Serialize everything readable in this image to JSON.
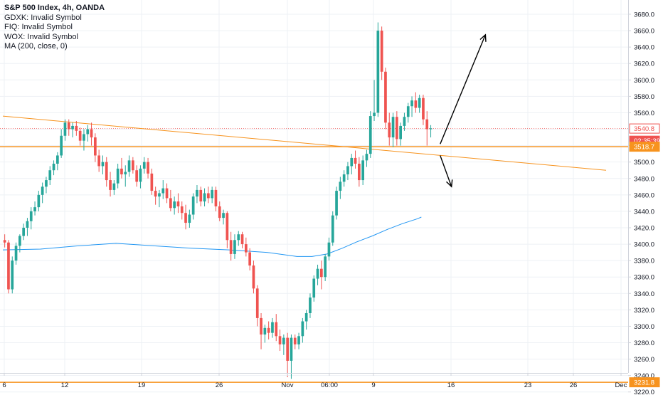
{
  "chart_data": {
    "type": "candlestick",
    "title": "S&P 500 Index, 4h, OANDA",
    "legend": [
      "GDXK: Invalid Symbol",
      "FIQ: Invalid Symbol",
      "WOX: Invalid Symbol",
      "MA (200, close, 0)"
    ],
    "x_tick_labels": [
      "6",
      "12",
      "19",
      "26",
      "Nov",
      "06:00",
      "9",
      "16",
      "23",
      "26",
      "Dec"
    ],
    "y_tick_labels": [
      3220,
      3240,
      3260,
      3280,
      3300,
      3320,
      3340,
      3360,
      3380,
      3400,
      3420,
      3440,
      3460,
      3480,
      3500,
      3520,
      3540,
      3560,
      3580,
      3600,
      3620,
      3640,
      3660,
      3680
    ],
    "ylim": [
      3212,
      3690
    ],
    "grid": true,
    "price_tags": [
      {
        "text": "3540.8",
        "value": 3540.8,
        "kind": "outline-red"
      },
      {
        "text": "02:35:39",
        "value": 3526,
        "kind": "fill-red"
      },
      {
        "text": "3518.7",
        "value": 3518.7,
        "kind": "fill-orange"
      },
      {
        "text": "3231.8",
        "value": 3231.8,
        "kind": "fill-orange"
      }
    ],
    "last_price": 3540.8,
    "horizontal_levels": [
      3518.7,
      3231.8
    ],
    "trendline": {
      "from": {
        "bar": 0,
        "value": 3556
      },
      "to": {
        "bar": 160,
        "value": 3490
      }
    },
    "annotations": [
      {
        "type": "arrow",
        "from": {
          "bar": 116,
          "value": 3522
        },
        "to": {
          "bar": 128,
          "value": 3655
        }
      },
      {
        "type": "arrow",
        "from": {
          "bar": 116,
          "value": 3508
        },
        "to": {
          "bar": 119,
          "value": 3470
        }
      }
    ],
    "moving_average": {
      "name": "MA (200, close, 0)",
      "values": [
        [
          0,
          3393
        ],
        [
          10,
          3394
        ],
        [
          20,
          3398
        ],
        [
          30,
          3401
        ],
        [
          40,
          3398
        ],
        [
          50,
          3395
        ],
        [
          60,
          3393
        ],
        [
          70,
          3390
        ],
        [
          78,
          3385
        ],
        [
          82,
          3385
        ],
        [
          86,
          3388
        ],
        [
          90,
          3395
        ],
        [
          94,
          3403
        ],
        [
          98,
          3410
        ],
        [
          102,
          3418
        ],
        [
          106,
          3425
        ],
        [
          110,
          3431
        ],
        [
          111,
          3433
        ]
      ]
    },
    "candles": [
      [
        3405,
        3412,
        3396,
        3402
      ],
      [
        3402,
        3405,
        3340,
        3345
      ],
      [
        3345,
        3385,
        3340,
        3380
      ],
      [
        3380,
        3402,
        3375,
        3398
      ],
      [
        3398,
        3412,
        3390,
        3410
      ],
      [
        3410,
        3425,
        3405,
        3420
      ],
      [
        3420,
        3432,
        3410,
        3428
      ],
      [
        3428,
        3445,
        3418,
        3440
      ],
      [
        3440,
        3452,
        3435,
        3445
      ],
      [
        3445,
        3465,
        3440,
        3460
      ],
      [
        3460,
        3475,
        3450,
        3470
      ],
      [
        3470,
        3482,
        3462,
        3478
      ],
      [
        3478,
        3495,
        3472,
        3490
      ],
      [
        3490,
        3502,
        3484,
        3498
      ],
      [
        3498,
        3512,
        3490,
        3508
      ],
      [
        3508,
        3540,
        3505,
        3532
      ],
      [
        3532,
        3552,
        3526,
        3548
      ],
      [
        3548,
        3552,
        3532,
        3540
      ],
      [
        3540,
        3548,
        3530,
        3544
      ],
      [
        3544,
        3550,
        3532,
        3538
      ],
      [
        3538,
        3542,
        3520,
        3526
      ],
      [
        3526,
        3540,
        3514,
        3534
      ],
      [
        3534,
        3545,
        3525,
        3540
      ],
      [
        3540,
        3548,
        3520,
        3530
      ],
      [
        3530,
        3535,
        3500,
        3508
      ],
      [
        3508,
        3515,
        3488,
        3495
      ],
      [
        3495,
        3508,
        3485,
        3500
      ],
      [
        3500,
        3506,
        3470,
        3478
      ],
      [
        3478,
        3488,
        3458,
        3466
      ],
      [
        3466,
        3478,
        3460,
        3474
      ],
      [
        3474,
        3498,
        3468,
        3492
      ],
      [
        3492,
        3505,
        3480,
        3485
      ],
      [
        3485,
        3496,
        3470,
        3488
      ],
      [
        3488,
        3508,
        3482,
        3502
      ],
      [
        3502,
        3506,
        3486,
        3490
      ],
      [
        3490,
        3496,
        3470,
        3476
      ],
      [
        3476,
        3496,
        3468,
        3492
      ],
      [
        3492,
        3506,
        3486,
        3500
      ],
      [
        3500,
        3505,
        3480,
        3486
      ],
      [
        3486,
        3492,
        3460,
        3465
      ],
      [
        3465,
        3470,
        3448,
        3458
      ],
      [
        3458,
        3466,
        3445,
        3462
      ],
      [
        3462,
        3478,
        3455,
        3468
      ],
      [
        3468,
        3474,
        3450,
        3456
      ],
      [
        3456,
        3466,
        3440,
        3444
      ],
      [
        3444,
        3458,
        3436,
        3452
      ],
      [
        3452,
        3462,
        3438,
        3446
      ],
      [
        3446,
        3452,
        3430,
        3438
      ],
      [
        3438,
        3448,
        3418,
        3426
      ],
      [
        3426,
        3442,
        3420,
        3436
      ],
      [
        3436,
        3462,
        3430,
        3458
      ],
      [
        3458,
        3472,
        3450,
        3466
      ],
      [
        3466,
        3470,
        3446,
        3452
      ],
      [
        3452,
        3468,
        3446,
        3462
      ],
      [
        3462,
        3470,
        3450,
        3456
      ],
      [
        3456,
        3470,
        3450,
        3466
      ],
      [
        3466,
        3470,
        3440,
        3446
      ],
      [
        3446,
        3452,
        3428,
        3432
      ],
      [
        3432,
        3442,
        3424,
        3438
      ],
      [
        3438,
        3440,
        3395,
        3405
      ],
      [
        3405,
        3415,
        3380,
        3388
      ],
      [
        3388,
        3412,
        3382,
        3405
      ],
      [
        3405,
        3416,
        3398,
        3412
      ],
      [
        3412,
        3415,
        3395,
        3400
      ],
      [
        3400,
        3408,
        3385,
        3390
      ],
      [
        3390,
        3395,
        3368,
        3374
      ],
      [
        3374,
        3380,
        3340,
        3346
      ],
      [
        3346,
        3350,
        3300,
        3310
      ],
      [
        3310,
        3316,
        3272,
        3290
      ],
      [
        3290,
        3302,
        3280,
        3298
      ],
      [
        3298,
        3306,
        3284,
        3292
      ],
      [
        3292,
        3310,
        3286,
        3305
      ],
      [
        3305,
        3315,
        3282,
        3288
      ],
      [
        3288,
        3296,
        3270,
        3278
      ],
      [
        3278,
        3290,
        3265,
        3286
      ],
      [
        3286,
        3292,
        3238,
        3258
      ],
      [
        3258,
        3290,
        3236,
        3286
      ],
      [
        3286,
        3290,
        3272,
        3278
      ],
      [
        3278,
        3292,
        3272,
        3288
      ],
      [
        3288,
        3310,
        3280,
        3306
      ],
      [
        3306,
        3320,
        3296,
        3316
      ],
      [
        3316,
        3340,
        3310,
        3335
      ],
      [
        3335,
        3362,
        3330,
        3358
      ],
      [
        3358,
        3375,
        3350,
        3370
      ],
      [
        3370,
        3380,
        3345,
        3360
      ],
      [
        3360,
        3388,
        3355,
        3385
      ],
      [
        3385,
        3408,
        3380,
        3402
      ],
      [
        3402,
        3440,
        3398,
        3435
      ],
      [
        3435,
        3470,
        3430,
        3465
      ],
      [
        3465,
        3482,
        3455,
        3476
      ],
      [
        3476,
        3490,
        3470,
        3485
      ],
      [
        3485,
        3500,
        3478,
        3495
      ],
      [
        3495,
        3510,
        3485,
        3505
      ],
      [
        3505,
        3514,
        3492,
        3498
      ],
      [
        3498,
        3506,
        3470,
        3478
      ],
      [
        3478,
        3508,
        3472,
        3502
      ],
      [
        3502,
        3515,
        3494,
        3510
      ],
      [
        3510,
        3562,
        3505,
        3556
      ],
      [
        3556,
        3600,
        3550,
        3560
      ],
      [
        3560,
        3670,
        3555,
        3660
      ],
      [
        3660,
        3665,
        3600,
        3610
      ],
      [
        3610,
        3615,
        3540,
        3548
      ],
      [
        3548,
        3560,
        3520,
        3530
      ],
      [
        3530,
        3560,
        3518,
        3555
      ],
      [
        3555,
        3562,
        3520,
        3528
      ],
      [
        3528,
        3548,
        3520,
        3544
      ],
      [
        3544,
        3560,
        3538,
        3555
      ],
      [
        3555,
        3572,
        3548,
        3568
      ],
      [
        3568,
        3580,
        3555,
        3575
      ],
      [
        3575,
        3585,
        3560,
        3566
      ],
      [
        3566,
        3582,
        3560,
        3578
      ],
      [
        3578,
        3582,
        3545,
        3552
      ],
      [
        3552,
        3562,
        3520,
        3540
      ],
      [
        3540,
        3545,
        3530,
        3541
      ]
    ]
  }
}
